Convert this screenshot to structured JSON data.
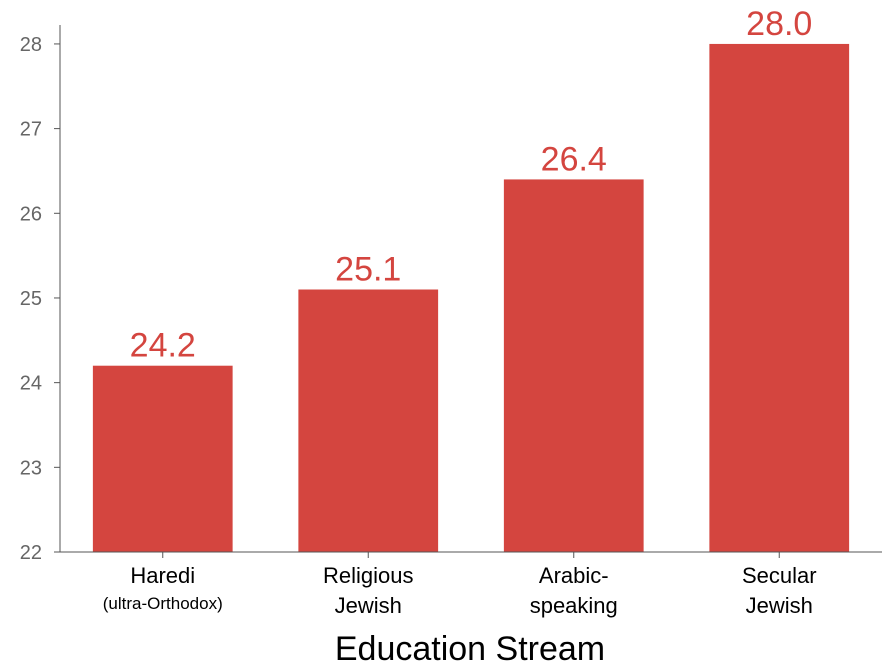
{
  "chart_data": {
    "type": "bar",
    "categories": [
      {
        "lines": [
          "Haredi"
        ],
        "sub": "(ultra-Orthodox)"
      },
      {
        "lines": [
          "Religious",
          "Jewish"
        ],
        "sub": ""
      },
      {
        "lines": [
          "Arabic-",
          "speaking"
        ],
        "sub": ""
      },
      {
        "lines": [
          "Secular",
          "Jewish"
        ],
        "sub": ""
      }
    ],
    "values": [
      24.2,
      25.1,
      26.4,
      28.0
    ],
    "value_labels": [
      "24.2",
      "25.1",
      "26.4",
      "28.0"
    ],
    "title": "",
    "xlabel": "Education Stream",
    "ylabel": "",
    "ylim": [
      22,
      28.2
    ],
    "yticks": [
      22,
      23,
      24,
      25,
      26,
      27,
      28
    ],
    "grid": false,
    "bar_color": "#d4453f",
    "label_color": "#d4453f",
    "axis_color": "#555555"
  }
}
